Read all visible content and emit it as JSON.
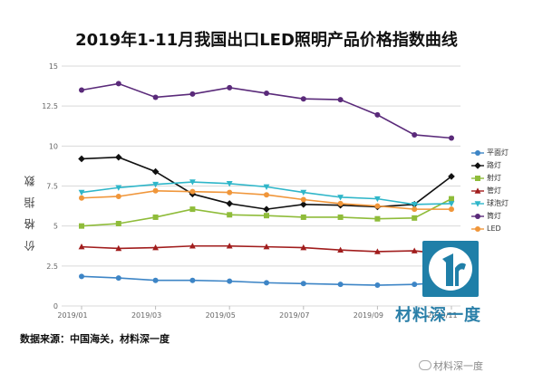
{
  "source_text": "数据来源：中国海关，材料深一度",
  "watermark_text": "材料深一度",
  "wechat_text": "材料深一度",
  "chart_data": {
    "type": "line",
    "title": "2019年1-11月我国出口LED照明产品价格指数曲线",
    "ylabel": "价 格 指 数",
    "xlabel": "",
    "ylim": [
      0,
      15
    ],
    "yticks": [
      "0",
      "2.5",
      "5",
      "7.5",
      "10",
      "12.5",
      "15"
    ],
    "x": [
      "2019/01",
      "2019/02",
      "2019/03",
      "2019/04",
      "2019/05",
      "2019/06",
      "2019/07",
      "2019/08",
      "2019/09",
      "2019/10",
      "2019/11"
    ],
    "xtick_labels": [
      "2019/01",
      "2019/03",
      "2019/05",
      "2019/07",
      "2019/09",
      "2019/11"
    ],
    "grid": "horizontal",
    "legend_position": "right",
    "series": [
      {
        "name": "平面灯",
        "color": "#3d85c6",
        "marker": "circle",
        "values": [
          1.85,
          1.75,
          1.6,
          1.6,
          1.55,
          1.45,
          1.4,
          1.35,
          1.3,
          1.35,
          1.5
        ]
      },
      {
        "name": "路灯",
        "color": "#111111",
        "marker": "diamond",
        "values": [
          9.2,
          9.3,
          8.4,
          7.0,
          6.4,
          6.05,
          6.35,
          6.3,
          6.2,
          6.35,
          8.1
        ]
      },
      {
        "name": "射灯",
        "color": "#8fbc3a",
        "marker": "square",
        "values": [
          5.0,
          5.15,
          5.55,
          6.05,
          5.7,
          5.65,
          5.55,
          5.55,
          5.45,
          5.5,
          6.7
        ]
      },
      {
        "name": "管灯",
        "color": "#a11d1d",
        "marker": "triangle",
        "values": [
          3.7,
          3.6,
          3.65,
          3.75,
          3.75,
          3.7,
          3.65,
          3.5,
          3.4,
          3.45,
          3.2
        ]
      },
      {
        "name": "球泡灯",
        "color": "#2fb6c9",
        "marker": "tri-down",
        "values": [
          7.1,
          7.4,
          7.6,
          7.75,
          7.65,
          7.45,
          7.1,
          6.8,
          6.7,
          6.35,
          6.4
        ]
      },
      {
        "name": "筒灯",
        "color": "#5a2a7a",
        "marker": "circle",
        "values": [
          13.5,
          13.9,
          13.05,
          13.25,
          13.65,
          13.3,
          12.95,
          12.9,
          11.95,
          10.7,
          10.5
        ]
      },
      {
        "name": "LED",
        "color": "#f0963a",
        "marker": "circle",
        "values": [
          6.75,
          6.85,
          7.2,
          7.15,
          7.1,
          6.95,
          6.65,
          6.4,
          6.25,
          6.05,
          6.05
        ]
      }
    ]
  }
}
